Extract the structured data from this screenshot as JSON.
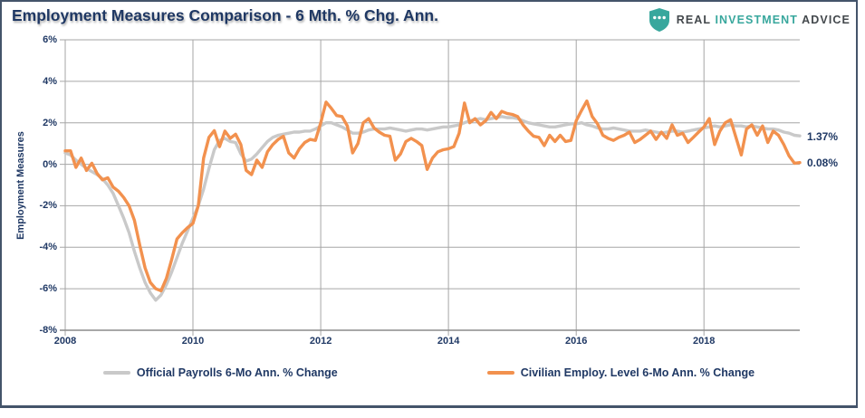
{
  "header": {
    "title": "Employment Measures Comparison - 6 Mth. % Chg. Ann.",
    "logo": {
      "icon": "shield-three-dots-icon",
      "word1": "REAL",
      "word2": "INVESTMENT",
      "word3": "ADVICE",
      "shield_color": "#38A79D",
      "text_color": "#43484C",
      "accent_color": "#38A79D"
    }
  },
  "colors": {
    "title_text": "#1F3864",
    "axis_text": "#1F3864",
    "gridline": "#A6A6A6",
    "axis_line": "#8C8C8C",
    "frame_border": "#44546A",
    "background": "#FFFFFF",
    "series_gray": "#C9C9C9",
    "series_orange": "#F2914E"
  },
  "chart_data": {
    "type": "line",
    "title": "Employment Measures Comparison - 6 Mth. % Chg. Ann.",
    "xlabel": "",
    "ylabel": "Employment Measures",
    "ylim": [
      -8,
      6
    ],
    "xlim": [
      2008,
      2019.5
    ],
    "grid": true,
    "legend_position": "bottom",
    "x_unit": "monthly from Jan 2008 to Jul 2019",
    "ytick_values": [
      6,
      4,
      2,
      0,
      -2,
      -4,
      -6,
      -8
    ],
    "ytick_labels": [
      "6%",
      "4%",
      "2%",
      "0%",
      "-2%",
      "-4%",
      "-6%",
      "-8%"
    ],
    "xtick_years": [
      2008,
      2010,
      2012,
      2014,
      2016,
      2018
    ],
    "xtick_labels": [
      "2008",
      "2010",
      "2012",
      "2014",
      "2016",
      "2018"
    ],
    "series": [
      {
        "name": "Official Payrolls 6-Mo Ann. % Change",
        "color": "#C9C9C9",
        "end_label": "1.37%",
        "values": [
          0.55,
          0.45,
          0.2,
          0.0,
          -0.2,
          -0.35,
          -0.5,
          -0.7,
          -1.0,
          -1.4,
          -2.0,
          -2.6,
          -3.3,
          -4.2,
          -5.0,
          -5.7,
          -6.2,
          -6.55,
          -6.3,
          -5.8,
          -5.2,
          -4.5,
          -3.8,
          -3.2,
          -2.6,
          -2.0,
          -1.2,
          -0.2,
          0.7,
          1.15,
          1.25,
          1.1,
          1.05,
          0.5,
          0.15,
          0.25,
          0.5,
          0.8,
          1.1,
          1.3,
          1.4,
          1.45,
          1.5,
          1.55,
          1.55,
          1.6,
          1.6,
          1.7,
          1.85,
          2.0,
          2.0,
          1.9,
          1.8,
          1.65,
          1.5,
          1.5,
          1.55,
          1.65,
          1.7,
          1.7,
          1.7,
          1.75,
          1.7,
          1.65,
          1.6,
          1.65,
          1.7,
          1.7,
          1.65,
          1.7,
          1.75,
          1.8,
          1.8,
          1.85,
          1.9,
          2.0,
          2.1,
          2.15,
          2.2,
          2.15,
          2.2,
          2.25,
          2.3,
          2.25,
          2.25,
          2.2,
          2.1,
          2.0,
          1.95,
          1.9,
          1.85,
          1.8,
          1.8,
          1.85,
          1.9,
          1.95,
          1.95,
          2.0,
          1.9,
          1.85,
          1.75,
          1.7,
          1.7,
          1.75,
          1.7,
          1.65,
          1.6,
          1.6,
          1.6,
          1.65,
          1.6,
          1.55,
          1.5,
          1.55,
          1.6,
          1.6,
          1.55,
          1.6,
          1.65,
          1.7,
          1.75,
          1.8,
          1.85,
          1.8,
          1.85,
          1.9,
          1.85,
          1.85,
          1.8,
          1.85,
          1.8,
          1.75,
          1.7,
          1.7,
          1.65,
          1.55,
          1.5,
          1.4,
          1.37
        ]
      },
      {
        "name": "Civilian Employ. Level 6-Mo Ann. % Change",
        "color": "#F2914E",
        "end_label": "0.08%",
        "values": [
          0.65,
          0.65,
          -0.15,
          0.3,
          -0.3,
          0.05,
          -0.45,
          -0.75,
          -0.65,
          -1.1,
          -1.3,
          -1.6,
          -2.0,
          -2.7,
          -3.9,
          -5.0,
          -5.7,
          -6.0,
          -6.1,
          -5.5,
          -4.6,
          -3.6,
          -3.3,
          -3.05,
          -2.85,
          -2.0,
          0.3,
          1.3,
          1.62,
          0.85,
          1.6,
          1.25,
          1.45,
          0.95,
          -0.3,
          -0.5,
          0.2,
          -0.15,
          0.6,
          0.95,
          1.2,
          1.35,
          0.55,
          0.3,
          0.75,
          1.05,
          1.2,
          1.15,
          2.0,
          3.0,
          2.7,
          2.35,
          2.3,
          1.85,
          0.55,
          1.0,
          2.0,
          2.2,
          1.75,
          1.55,
          1.4,
          1.35,
          0.2,
          0.5,
          1.1,
          1.25,
          1.1,
          0.9,
          -0.25,
          0.3,
          0.6,
          0.7,
          0.75,
          0.85,
          1.5,
          2.95,
          2.0,
          2.2,
          1.9,
          2.1,
          2.5,
          2.2,
          2.55,
          2.45,
          2.4,
          2.3,
          1.9,
          1.6,
          1.35,
          1.3,
          0.9,
          1.4,
          1.1,
          1.4,
          1.1,
          1.15,
          2.1,
          2.6,
          3.05,
          2.3,
          1.95,
          1.4,
          1.25,
          1.15,
          1.3,
          1.4,
          1.55,
          1.05,
          1.2,
          1.4,
          1.6,
          1.2,
          1.55,
          1.25,
          1.9,
          1.4,
          1.5,
          1.05,
          1.3,
          1.55,
          1.8,
          2.2,
          0.95,
          1.6,
          2.0,
          2.15,
          1.3,
          0.45,
          1.7,
          1.9,
          1.4,
          1.85,
          1.05,
          1.6,
          1.4,
          0.95,
          0.4,
          0.05,
          0.08
        ]
      }
    ]
  }
}
